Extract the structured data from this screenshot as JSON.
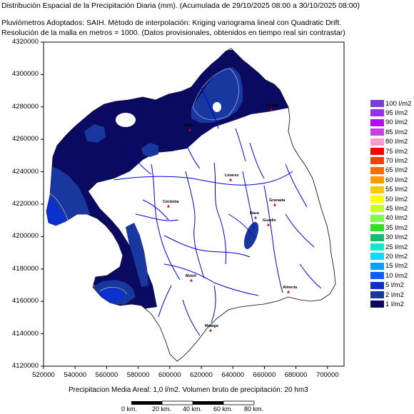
{
  "header": {
    "title": "Distribución Espacial de la Precipitación Diaria (mm). (Acumulada de 29/10/2025 08:00 a 30/10/2025 08:00)",
    "line2": "Pluviómetros Adoptados: SAIH.  Método de interpolación: Kriging variograma lineal con Quadratic Drift.",
    "line3": "Resolución de la malla en metros = 1000. (Datos provisionales, obtenidos en tiempo real sin contrastar)"
  },
  "axes": {
    "y_ticks": [
      "4320000",
      "4300000",
      "4280000",
      "4260000",
      "4240000",
      "4220000",
      "4200000",
      "4180000",
      "4160000",
      "4140000",
      "4120000"
    ],
    "x_ticks": [
      "520000",
      "540000",
      "560000",
      "580000",
      "600000",
      "620000",
      "640000",
      "660000",
      "680000",
      "700000"
    ]
  },
  "legend": [
    {
      "label": "100 l/m2",
      "color": "#7a3fd8"
    },
    {
      "label": "95 l/m2",
      "color": "#9a2fe8"
    },
    {
      "label": "90 l/m2",
      "color": "#b010f0"
    },
    {
      "label": "85 l/m2",
      "color": "#c83fe0"
    },
    {
      "label": "80 l/m2",
      "color": "#ff9ad0"
    },
    {
      "label": "75 l/m2",
      "color": "#ff0000"
    },
    {
      "label": "70 l/m2",
      "color": "#ff3a10"
    },
    {
      "label": "65 l/m2",
      "color": "#ff6a00"
    },
    {
      "label": "60 l/m2",
      "color": "#ff9a00"
    },
    {
      "label": "55 l/m2",
      "color": "#ffc800"
    },
    {
      "label": "50 l/m2",
      "color": "#ffff00"
    },
    {
      "label": "45 l/m2",
      "color": "#c8ff20"
    },
    {
      "label": "40 l/m2",
      "color": "#80ff40"
    },
    {
      "label": "35 l/m2",
      "color": "#30e020"
    },
    {
      "label": "30 l/m2",
      "color": "#10c070"
    },
    {
      "label": "25 l/m2",
      "color": "#10e8d0"
    },
    {
      "label": "20 l/m2",
      "color": "#10d8ff"
    },
    {
      "label": "15 l/m2",
      "color": "#0aa0ff"
    },
    {
      "label": "10 l/m2",
      "color": "#0a60ff"
    },
    {
      "label": "5 l/m2",
      "color": "#0a30d0"
    },
    {
      "label": "2 l/m2",
      "color": "#1838a0"
    },
    {
      "label": "1 l/m2",
      "color": "#0a0a60"
    }
  ],
  "footer": "Precipitacion Media Areal: 1,0 l/m2. Volumen bruto de precipitación: 20 hm3",
  "scale_bar": [
    "0 km.",
    "20 km.",
    "40 km.",
    "60 km.",
    "80 km."
  ],
  "towns": [
    "Jaén",
    "Úbeda",
    "Linares",
    "Córdoba",
    "Granada",
    "Guadix",
    "Baza",
    "Almería",
    "Motril",
    "Málaga"
  ],
  "colors": {
    "dark_precip": "#0a0a60",
    "medium_precip": "#1838a0",
    "light_precip": "#0a30d0",
    "rivers": "#0000e0"
  }
}
